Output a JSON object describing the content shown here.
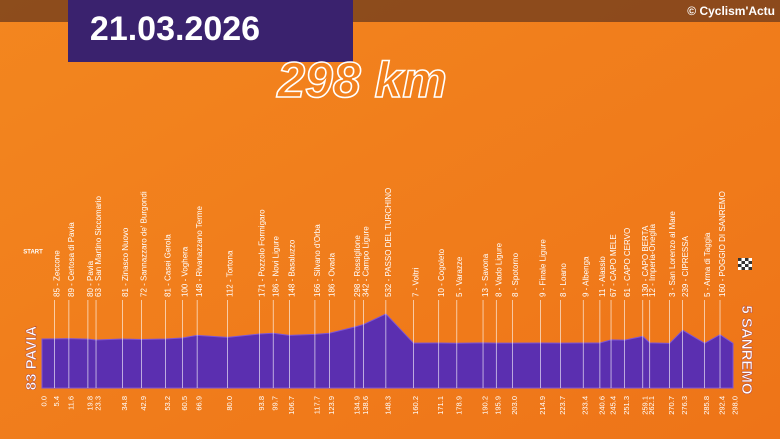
{
  "header": {
    "date": "21.03.2026",
    "copyright": "© Cyclism'Actu"
  },
  "chart_data": {
    "type": "area",
    "title": "298 km",
    "color": "#5b2fb0",
    "start_marker": "START",
    "start_label": "83 PAVIA",
    "finish_label": "5 SANREMO",
    "xlim": [
      0,
      298
    ],
    "ylim": [
      -800,
      1000
    ],
    "x": [
      {
        "value": 0,
        "label": "0.0"
      },
      5.4,
      11.6,
      19.8,
      23.3,
      34.8,
      42.9,
      53.2,
      60.5,
      66.9,
      {
        "value": 80,
        "label": "80.0"
      },
      93.8,
      99.7,
      106.7,
      117.7,
      123.9,
      134.9,
      138.6,
      148.3,
      160.2,
      171.1,
      178.9,
      190.2,
      195.9,
      {
        "value": 203,
        "label": "203.0"
      },
      214.9,
      223.7,
      233.4,
      240.6,
      245.4,
      251.3,
      259.1,
      262.1,
      270.7,
      276.3,
      285.8,
      292.4,
      {
        "value": 298,
        "label": "298.0"
      }
    ],
    "values": [
      83,
      85,
      89,
      80,
      63,
      81,
      72,
      81,
      100,
      148,
      112,
      171,
      186,
      148,
      166,
      186,
      298,
      342,
      532,
      7,
      10,
      5,
      13,
      8,
      8,
      9,
      8,
      9,
      11,
      67,
      61,
      130,
      12,
      3,
      239,
      5,
      160,
      5
    ],
    "labels": [
      null,
      "85 - Zeccone",
      "89 - Certosa di Pavia",
      "80 - Pavia",
      "63 - San Martino Siccomario",
      "81 - Zinasco Nuovo",
      "72 - Sannazzaro de' Burgondi",
      "81 - Casei Gerola",
      "100 - Voghera",
      "148 - Rivanazzano Terme",
      "112 - Tortona",
      "171 - Pozzolo Formigaro",
      "186 - Novi Ligure",
      "148 - Basaluzzo",
      "166 - Silvano d'Orba",
      "186 - Ovada",
      "298 - Rossiglione",
      "342 - Campo Ligure",
      "532 - PASSO DEL TURCHINO",
      "7 - Voltri",
      "10 - Cogoleto",
      "5 - Varazze",
      "13 - Savona",
      "8 - Vado Ligure",
      "8 - Spotorno",
      "9 - Finale Ligure",
      "8 - Loano",
      "9 - Albenga",
      "11 - Alassio",
      "67 - CAPO MELE",
      "61 - CAPO CERVO",
      "130 - CAPO BERTA",
      "12 - Imperia-Oneglia",
      "3 - San Lorenzo al Mare",
      "239 - CIPRESSA",
      "5 - Arma di Taggia",
      "160 - POGGIO DI SANREMO",
      null
    ]
  }
}
